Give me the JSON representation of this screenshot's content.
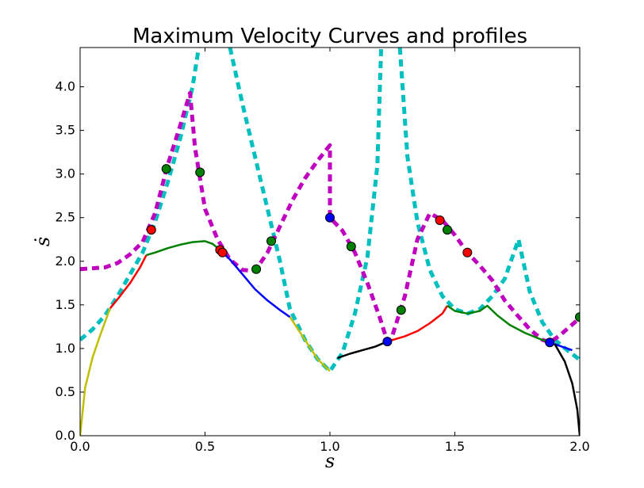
{
  "chart_data": {
    "type": "line",
    "title": "Maximum Velocity Curves and profiles",
    "xlabel": "s",
    "ylabel": "ṡ",
    "xlim": [
      0.0,
      2.0
    ],
    "ylim": [
      0.0,
      4.45
    ],
    "xticks": [
      "0.0",
      "0.5",
      "1.0",
      "1.5",
      "2.0"
    ],
    "yticks": [
      "0.0",
      "0.5",
      "1.0",
      "1.5",
      "2.0",
      "2.5",
      "3.0",
      "3.5",
      "4.0"
    ],
    "grid": false,
    "series": [
      {
        "color": "#00bfbf",
        "style": "dashed",
        "points": [
          [
            0.0,
            1.1
          ],
          [
            0.05,
            1.22
          ],
          [
            0.1,
            1.38
          ],
          [
            0.15,
            1.6
          ],
          [
            0.2,
            1.85
          ],
          [
            0.25,
            2.1
          ],
          [
            0.3,
            2.45
          ],
          [
            0.35,
            2.9
          ],
          [
            0.4,
            3.4
          ],
          [
            0.45,
            4.0
          ],
          [
            0.475,
            4.45
          ]
        ]
      },
      {
        "color": "#00bfbf",
        "style": "dashed",
        "points": [
          [
            0.6,
            4.45
          ],
          [
            0.65,
            3.8
          ],
          [
            0.7,
            3.2
          ],
          [
            0.75,
            2.6
          ],
          [
            0.8,
            2.0
          ],
          [
            0.84,
            1.45
          ],
          [
            0.9,
            1.1
          ],
          [
            0.95,
            0.88
          ],
          [
            1.0,
            0.74
          ],
          [
            1.05,
            0.95
          ],
          [
            1.1,
            1.4
          ],
          [
            1.15,
            2.05
          ],
          [
            1.19,
            3.1
          ],
          [
            1.205,
            4.45
          ]
        ]
      },
      {
        "color": "#00bfbf",
        "style": "dashed",
        "points": [
          [
            1.28,
            4.45
          ],
          [
            1.31,
            3.2
          ],
          [
            1.35,
            2.45
          ],
          [
            1.4,
            1.9
          ],
          [
            1.45,
            1.6
          ],
          [
            1.5,
            1.45
          ],
          [
            1.55,
            1.4
          ],
          [
            1.6,
            1.45
          ],
          [
            1.65,
            1.6
          ],
          [
            1.7,
            1.8
          ],
          [
            1.755,
            2.25
          ],
          [
            1.8,
            1.65
          ],
          [
            1.85,
            1.3
          ],
          [
            1.9,
            1.1
          ],
          [
            1.95,
            0.98
          ],
          [
            2.0,
            0.87
          ]
        ]
      },
      {
        "color": "#bf00bf",
        "style": "dashed",
        "points": [
          [
            0.0,
            1.91
          ],
          [
            0.05,
            1.92
          ],
          [
            0.1,
            1.93
          ],
          [
            0.15,
            1.98
          ],
          [
            0.2,
            2.08
          ],
          [
            0.25,
            2.22
          ],
          [
            0.3,
            2.55
          ],
          [
            0.35,
            3.1
          ],
          [
            0.4,
            3.55
          ],
          [
            0.44,
            3.93
          ],
          [
            0.46,
            3.3
          ],
          [
            0.5,
            2.6
          ],
          [
            0.55,
            2.25
          ],
          [
            0.6,
            2.02
          ],
          [
            0.65,
            1.9
          ],
          [
            0.7,
            1.89
          ],
          [
            0.75,
            2.1
          ],
          [
            0.8,
            2.4
          ],
          [
            0.85,
            2.7
          ],
          [
            0.9,
            2.95
          ],
          [
            0.95,
            3.15
          ],
          [
            1.0,
            3.33
          ],
          [
            1.0,
            2.5
          ],
          [
            1.05,
            2.35
          ],
          [
            1.1,
            2.1
          ],
          [
            1.15,
            1.75
          ],
          [
            1.2,
            1.35
          ],
          [
            1.23,
            1.08
          ],
          [
            1.25,
            1.15
          ],
          [
            1.3,
            1.6
          ],
          [
            1.35,
            2.25
          ],
          [
            1.4,
            2.55
          ],
          [
            1.45,
            2.47
          ],
          [
            1.5,
            2.3
          ],
          [
            1.55,
            2.1
          ],
          [
            1.6,
            1.95
          ],
          [
            1.65,
            1.78
          ],
          [
            1.7,
            1.55
          ],
          [
            1.75,
            1.38
          ],
          [
            1.8,
            1.22
          ],
          [
            1.85,
            1.1
          ],
          [
            1.88,
            1.07
          ],
          [
            1.92,
            1.15
          ],
          [
            1.96,
            1.25
          ],
          [
            2.0,
            1.35
          ]
        ]
      },
      {
        "color": "#bfbf00",
        "style": "solid",
        "points": [
          [
            0.0,
            0.0
          ],
          [
            0.02,
            0.55
          ],
          [
            0.05,
            0.9
          ],
          [
            0.08,
            1.15
          ],
          [
            0.12,
            1.46
          ]
        ]
      },
      {
        "color": "#ff0000",
        "style": "solid",
        "points": [
          [
            0.12,
            1.46
          ],
          [
            0.16,
            1.6
          ],
          [
            0.2,
            1.75
          ],
          [
            0.24,
            1.93
          ],
          [
            0.265,
            2.07
          ]
        ]
      },
      {
        "color": "#008000",
        "style": "solid",
        "points": [
          [
            0.265,
            2.07
          ],
          [
            0.3,
            2.1
          ],
          [
            0.35,
            2.15
          ],
          [
            0.4,
            2.19
          ],
          [
            0.45,
            2.22
          ],
          [
            0.5,
            2.23
          ],
          [
            0.53,
            2.2
          ],
          [
            0.56,
            2.13
          ]
        ]
      },
      {
        "color": "#0000ff",
        "style": "solid",
        "points": [
          [
            0.56,
            2.13
          ],
          [
            0.6,
            2.02
          ],
          [
            0.65,
            1.85
          ],
          [
            0.7,
            1.68
          ],
          [
            0.75,
            1.55
          ],
          [
            0.8,
            1.44
          ],
          [
            0.84,
            1.36
          ]
        ]
      },
      {
        "color": "#bfbf00",
        "style": "solid",
        "points": [
          [
            0.84,
            1.36
          ],
          [
            0.9,
            1.1
          ],
          [
            0.95,
            0.88
          ],
          [
            1.0,
            0.74
          ]
        ]
      },
      {
        "color": "#000000",
        "style": "solid",
        "points": [
          [
            1.03,
            0.89
          ],
          [
            1.08,
            0.94
          ],
          [
            1.13,
            0.98
          ],
          [
            1.18,
            1.02
          ],
          [
            1.23,
            1.08
          ]
        ]
      },
      {
        "color": "#ff0000",
        "style": "solid",
        "points": [
          [
            1.23,
            1.08
          ],
          [
            1.3,
            1.14
          ],
          [
            1.35,
            1.2
          ],
          [
            1.4,
            1.29
          ],
          [
            1.45,
            1.4
          ],
          [
            1.47,
            1.49
          ]
        ]
      },
      {
        "color": "#008000",
        "style": "solid",
        "points": [
          [
            1.47,
            1.49
          ],
          [
            1.5,
            1.43
          ],
          [
            1.55,
            1.4
          ],
          [
            1.6,
            1.43
          ],
          [
            1.63,
            1.49
          ],
          [
            1.67,
            1.38
          ],
          [
            1.72,
            1.27
          ],
          [
            1.78,
            1.18
          ],
          [
            1.84,
            1.11
          ],
          [
            1.88,
            1.07
          ]
        ]
      },
      {
        "color": "#0000ff",
        "style": "solid",
        "points": [
          [
            1.88,
            1.07
          ],
          [
            1.93,
            1.02
          ],
          [
            1.97,
            0.98
          ]
        ]
      },
      {
        "color": "#000000",
        "style": "solid",
        "points": [
          [
            1.9,
            1.05
          ],
          [
            1.94,
            0.85
          ],
          [
            1.97,
            0.6
          ],
          [
            1.99,
            0.3
          ],
          [
            2.0,
            0.0
          ]
        ]
      }
    ],
    "markers": [
      {
        "color": "#ff0000",
        "points": [
          [
            0.285,
            2.36
          ],
          [
            0.56,
            2.13
          ],
          [
            0.57,
            2.1
          ],
          [
            1.44,
            2.47
          ],
          [
            1.55,
            2.1
          ]
        ]
      },
      {
        "color": "#008000",
        "points": [
          [
            0.345,
            3.06
          ],
          [
            0.48,
            3.02
          ],
          [
            0.705,
            1.91
          ],
          [
            0.765,
            2.23
          ],
          [
            1.085,
            2.17
          ],
          [
            1.285,
            1.44
          ],
          [
            1.47,
            2.36
          ],
          [
            2.0,
            1.36
          ]
        ]
      },
      {
        "color": "#0000ff",
        "points": [
          [
            1.0,
            2.5
          ],
          [
            1.23,
            1.08
          ],
          [
            1.88,
            1.07
          ]
        ]
      }
    ]
  }
}
